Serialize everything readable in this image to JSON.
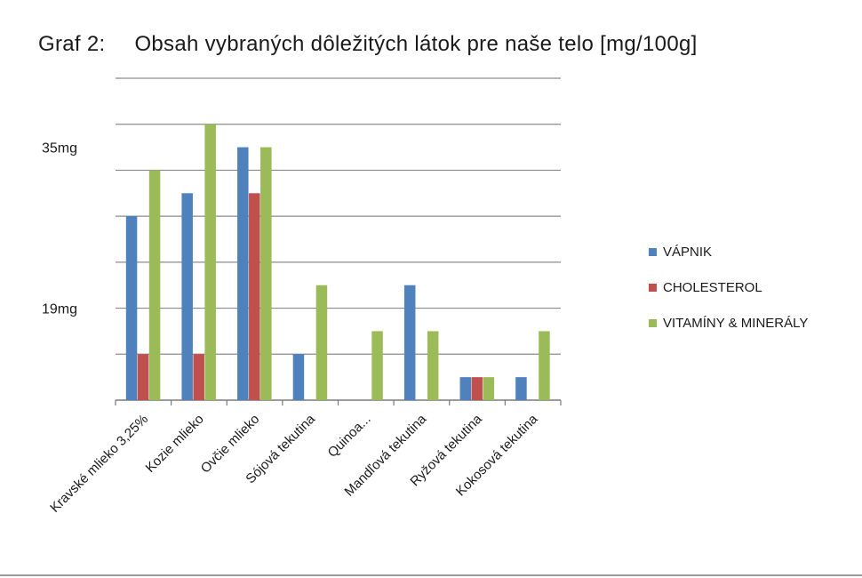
{
  "title": {
    "label": "Graf 2:",
    "text": "Obsah  vybraných dôležitých látok pre  naše telo [mg/100g]"
  },
  "chart_data": {
    "type": "bar",
    "categories": [
      "Kravské mlieko 3,25%",
      "Kozie mlieko",
      "Ovčie mlieko",
      "Sójová tekutina",
      "Quinoa...",
      "Mandľová tekutina",
      "Ryžová tekutina",
      "Kokosová tekutina"
    ],
    "series": [
      {
        "name": "VÁPNIK",
        "color": "#4f81bd",
        "values": [
          8,
          9,
          11,
          2,
          0,
          5,
          1,
          1
        ]
      },
      {
        "name": "CHOLESTEROL",
        "color": "#c0504d",
        "values": [
          2,
          2,
          9,
          0,
          0,
          0,
          1,
          0
        ]
      },
      {
        "name": "VITAMÍNY & MINERÁLY",
        "color": "#9bbb59",
        "values": [
          10,
          12,
          11,
          5,
          3,
          3,
          1,
          3
        ]
      }
    ],
    "ylim": [
      0,
      14
    ],
    "yticks": [
      {
        "value": 11,
        "label": "35mg"
      },
      {
        "value": 4,
        "label": "19mg"
      }
    ],
    "grid": true,
    "legend_position": "right"
  }
}
